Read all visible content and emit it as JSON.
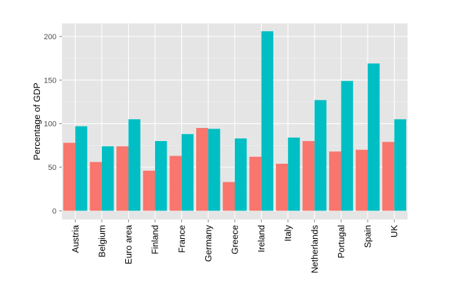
{
  "chart_data": {
    "type": "bar",
    "title": "",
    "xlabel": "",
    "ylabel": "Percentage of GDP",
    "ylim": [
      -10,
      215
    ],
    "yticks": [
      0,
      50,
      100,
      150,
      200
    ],
    "grid": true,
    "legend": "none",
    "categories": [
      "Austria",
      "Belgium",
      "Euro area",
      "Finland",
      "France",
      "Germany",
      "Greece",
      "Ireland",
      "Italy",
      "Netherlands",
      "Portugal",
      "Spain",
      "UK"
    ],
    "series": [
      {
        "color": "#F8766D",
        "values": [
          78,
          56,
          74,
          46,
          63,
          95,
          33,
          62,
          54,
          80,
          68,
          70,
          79
        ]
      },
      {
        "color": "#00BFC4",
        "values": [
          97,
          74,
          105,
          80,
          88,
          94,
          83,
          206,
          84,
          127,
          149,
          169,
          105
        ]
      }
    ],
    "panel_background": "#E5E5E5",
    "grid_color": "#FFFFFF"
  }
}
